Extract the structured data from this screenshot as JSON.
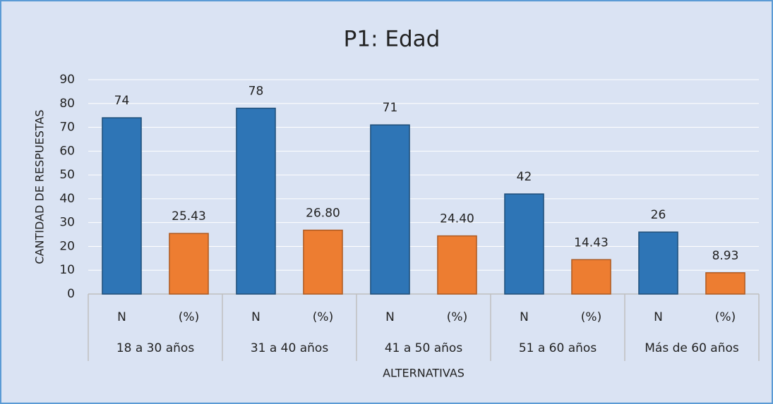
{
  "chart_data": {
    "type": "bar",
    "title": "P1: Edad",
    "x_label": "ALTERNATIVAS",
    "y_label": "CANTIDAD DE RESPUESTAS",
    "groups": [
      "18 a 30 años",
      "31 a 40 años",
      "41 a 50 años",
      "51 a 60 años",
      "Más de 60 años"
    ],
    "categories": [
      "N",
      "(%)",
      "N",
      "(%)",
      "N",
      "(%)",
      "N",
      "(%)",
      "N",
      "(%)"
    ],
    "values": [
      74,
      25.43,
      78,
      26.8,
      71,
      24.4,
      42,
      14.43,
      26,
      8.93
    ],
    "value_labels": [
      "74",
      "25.43",
      "78",
      "26.80",
      "71",
      "24.40",
      "42",
      "14.43",
      "26",
      "8.93"
    ],
    "colors": [
      "#2e75b6",
      "#ed7d31",
      "#2e75b6",
      "#ed7d31",
      "#2e75b6",
      "#ed7d31",
      "#2e75b6",
      "#ed7d31",
      "#2e75b6",
      "#ed7d31"
    ],
    "ylim": [
      0,
      90
    ],
    "yticks": [
      0,
      10,
      20,
      30,
      40,
      50,
      60,
      70,
      80,
      90
    ],
    "grid": true
  }
}
